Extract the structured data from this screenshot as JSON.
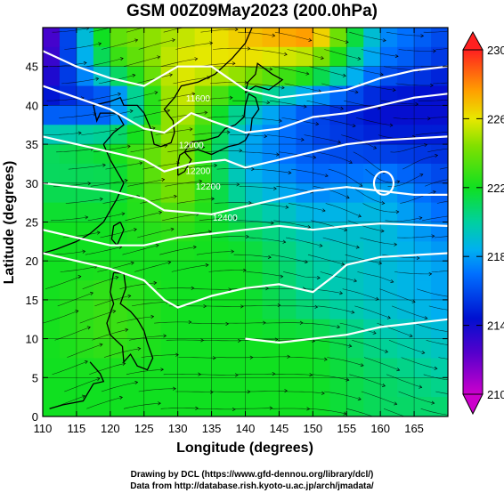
{
  "chart_data": {
    "type": "heatmap",
    "title": "GSM 00Z09May2023 (200.0hPa)",
    "xlabel": "Longitude (degrees)",
    "ylabel": "Latitude (degrees)",
    "xlim": [
      110,
      170
    ],
    "ylim": [
      0,
      50
    ],
    "xticks": [
      110,
      115,
      120,
      125,
      130,
      135,
      140,
      145,
      150,
      155,
      160,
      165
    ],
    "yticks": [
      0,
      5,
      10,
      15,
      20,
      25,
      30,
      35,
      40,
      45
    ],
    "grid": true,
    "colorbar": {
      "range": [
        210,
        230
      ],
      "ticks": [
        210,
        214,
        218,
        222,
        226,
        230
      ],
      "position": "right"
    },
    "shading_field": {
      "x_lon": [
        110,
        120,
        130,
        140,
        150,
        160,
        170
      ],
      "y_lat": [
        50,
        45,
        40,
        35,
        30,
        25,
        20,
        15,
        10,
        5,
        0
      ],
      "values": [
        [
          211,
          224,
          225,
          227,
          229,
          218,
          216
        ],
        [
          212,
          222,
          226,
          226,
          224,
          217,
          215
        ],
        [
          215,
          215,
          226,
          220,
          216,
          214,
          214
        ],
        [
          221,
          222,
          225,
          218,
          216,
          215,
          215
        ],
        [
          221,
          221,
          225,
          219,
          217,
          218,
          216
        ],
        [
          222,
          222,
          223,
          221,
          219,
          219,
          217
        ],
        [
          222,
          222,
          222,
          222,
          220,
          219,
          218
        ],
        [
          222,
          223,
          222,
          222,
          220,
          219,
          218
        ],
        [
          222,
          223,
          222,
          222,
          222,
          220,
          219
        ],
        [
          222,
          222,
          222,
          222,
          222,
          221,
          220
        ],
        [
          222,
          222,
          222,
          222,
          222,
          221,
          221
        ]
      ]
    },
    "contour_labels": [
      "11600",
      "12000",
      "12200",
      "12400"
    ]
  },
  "credits": {
    "line1": "Drawing by DCL (https://www.gfd-dennou.org/library/dcl/)",
    "line2": "Data from http://database.rish.kyoto-u.ac.jp/arch/jmadata/"
  }
}
